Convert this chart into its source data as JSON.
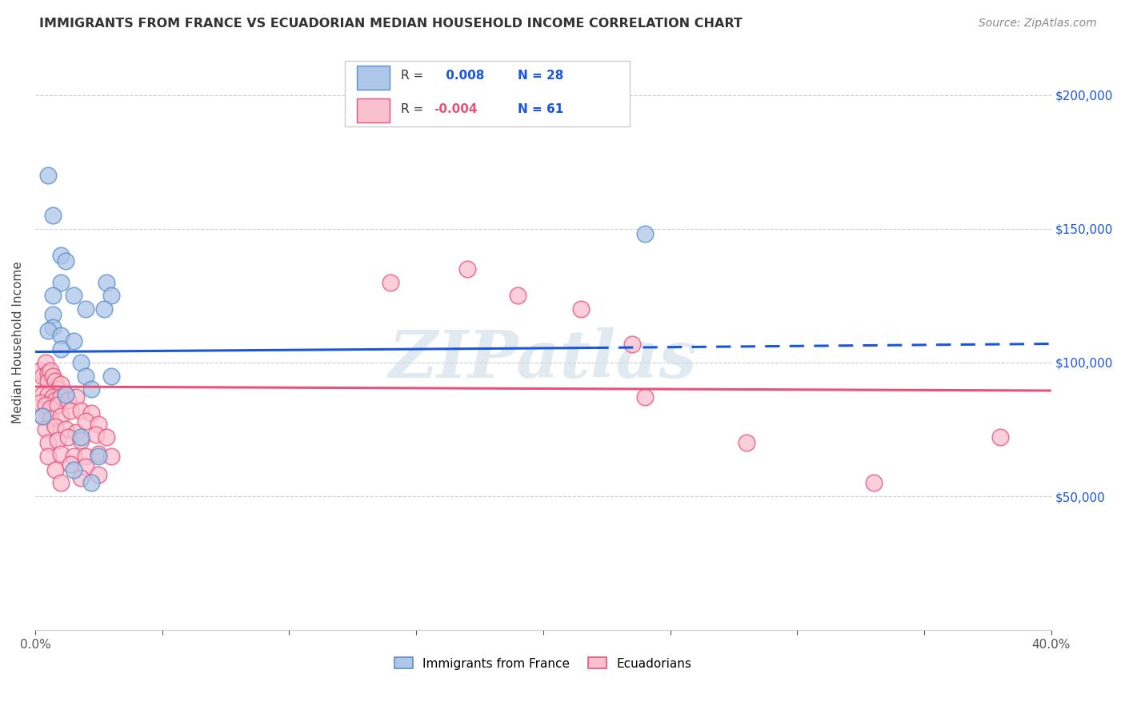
{
  "title": "IMMIGRANTS FROM FRANCE VS ECUADORIAN MEDIAN HOUSEHOLD INCOME CORRELATION CHART",
  "source": "Source: ZipAtlas.com",
  "ylabel": "Median Household Income",
  "yticks": [
    50000,
    100000,
    150000,
    200000
  ],
  "ytick_labels": [
    "$50,000",
    "$100,000",
    "$150,000",
    "$200,000"
  ],
  "xlim": [
    0.0,
    0.4
  ],
  "ylim": [
    0,
    215000
  ],
  "xtick_vals": [
    0.0,
    0.05,
    0.1,
    0.15,
    0.2,
    0.25,
    0.3,
    0.35,
    0.4
  ],
  "xtick_labels": [
    "0.0%",
    "",
    "",
    "",
    "",
    "",
    "",
    "",
    "40.0%"
  ],
  "legend_r_blue": "R =  0.008",
  "legend_n_blue": "N = 28",
  "legend_r_pink": "R = -0.004",
  "legend_n_pink": "N = 61",
  "legend_label_blue": "Immigrants from France",
  "legend_label_pink": "Ecuadorians",
  "blue_fill": "#aec6e8",
  "pink_fill": "#f9c0cf",
  "blue_edge": "#5b8fc9",
  "pink_edge": "#e8527a",
  "blue_line_color": "#1a56db",
  "pink_line_color": "#e8527a",
  "blue_trendline_solid": [
    0.0,
    104000,
    0.22,
    105500
  ],
  "blue_trendline_dash": [
    0.22,
    105500,
    0.4,
    107000
  ],
  "pink_trendline": [
    0.0,
    91000,
    0.4,
    89500
  ],
  "watermark": "ZIPatlas",
  "blue_points": [
    [
      0.005,
      170000
    ],
    [
      0.007,
      155000
    ],
    [
      0.01,
      140000
    ],
    [
      0.012,
      138000
    ],
    [
      0.01,
      130000
    ],
    [
      0.007,
      125000
    ],
    [
      0.015,
      125000
    ],
    [
      0.028,
      130000
    ],
    [
      0.007,
      118000
    ],
    [
      0.02,
      120000
    ],
    [
      0.007,
      113000
    ],
    [
      0.005,
      112000
    ],
    [
      0.01,
      110000
    ],
    [
      0.03,
      125000
    ],
    [
      0.015,
      108000
    ],
    [
      0.027,
      120000
    ],
    [
      0.01,
      105000
    ],
    [
      0.018,
      100000
    ],
    [
      0.02,
      95000
    ],
    [
      0.012,
      88000
    ],
    [
      0.022,
      90000
    ],
    [
      0.03,
      95000
    ],
    [
      0.018,
      72000
    ],
    [
      0.025,
      65000
    ],
    [
      0.015,
      60000
    ],
    [
      0.022,
      55000
    ],
    [
      0.24,
      148000
    ],
    [
      0.003,
      80000
    ]
  ],
  "pink_points": [
    [
      0.002,
      97000
    ],
    [
      0.003,
      95000
    ],
    [
      0.004,
      100000
    ],
    [
      0.005,
      96000
    ],
    [
      0.005,
      93000
    ],
    [
      0.006,
      97000
    ],
    [
      0.007,
      95000
    ],
    [
      0.008,
      93000
    ],
    [
      0.009,
      90000
    ],
    [
      0.01,
      92000
    ],
    [
      0.003,
      88000
    ],
    [
      0.005,
      88000
    ],
    [
      0.007,
      87000
    ],
    [
      0.008,
      86000
    ],
    [
      0.01,
      87000
    ],
    [
      0.012,
      88000
    ],
    [
      0.002,
      85000
    ],
    [
      0.004,
      84000
    ],
    [
      0.006,
      83000
    ],
    [
      0.009,
      84000
    ],
    [
      0.013,
      86000
    ],
    [
      0.016,
      87000
    ],
    [
      0.003,
      80000
    ],
    [
      0.006,
      79000
    ],
    [
      0.01,
      80000
    ],
    [
      0.014,
      82000
    ],
    [
      0.018,
      82000
    ],
    [
      0.022,
      81000
    ],
    [
      0.004,
      75000
    ],
    [
      0.008,
      76000
    ],
    [
      0.012,
      75000
    ],
    [
      0.016,
      74000
    ],
    [
      0.02,
      78000
    ],
    [
      0.025,
      77000
    ],
    [
      0.005,
      70000
    ],
    [
      0.009,
      71000
    ],
    [
      0.013,
      72000
    ],
    [
      0.018,
      71000
    ],
    [
      0.024,
      73000
    ],
    [
      0.028,
      72000
    ],
    [
      0.005,
      65000
    ],
    [
      0.01,
      66000
    ],
    [
      0.015,
      65000
    ],
    [
      0.02,
      65000
    ],
    [
      0.025,
      66000
    ],
    [
      0.03,
      65000
    ],
    [
      0.008,
      60000
    ],
    [
      0.014,
      62000
    ],
    [
      0.02,
      61000
    ],
    [
      0.01,
      55000
    ],
    [
      0.018,
      57000
    ],
    [
      0.025,
      58000
    ],
    [
      0.14,
      130000
    ],
    [
      0.17,
      135000
    ],
    [
      0.19,
      125000
    ],
    [
      0.215,
      120000
    ],
    [
      0.235,
      107000
    ],
    [
      0.24,
      87000
    ],
    [
      0.28,
      70000
    ],
    [
      0.33,
      55000
    ],
    [
      0.38,
      72000
    ]
  ]
}
